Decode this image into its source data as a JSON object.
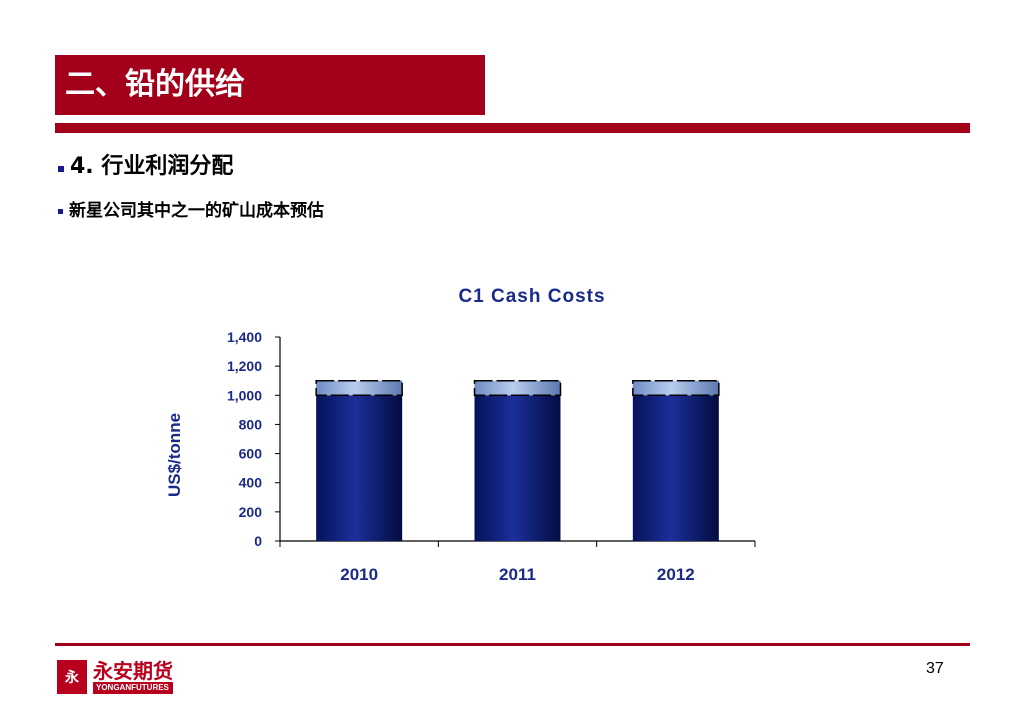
{
  "slide": {
    "title": "二、铅的供给",
    "heading": "4. 行业利润分配",
    "subheading": "新星公司其中之一的矿山成本预估",
    "page_number": "37"
  },
  "footer": {
    "logo_cn": "永安期货",
    "logo_en": "YONGANFUTURES",
    "logo_mark": "永"
  },
  "colors": {
    "brand_red": "#a3001c",
    "bar_fill": "#0c1f7a",
    "bar_cap": "#9fb8e0",
    "axis_text": "#1a2a8a"
  },
  "chart_data": {
    "type": "bar",
    "title": "C1 Cash Costs",
    "ylabel": "US$/tonne",
    "xlabel": "",
    "categories": [
      "2010",
      "2011",
      "2012"
    ],
    "series": [
      {
        "values": [
          1000,
          1000,
          1000
        ]
      },
      {
        "values": [
          100,
          100,
          100
        ]
      }
    ],
    "stacked": true,
    "ylim": [
      0,
      1400
    ],
    "yticks": [
      0,
      200,
      400,
      600,
      800,
      1000,
      1200,
      1400
    ],
    "ytick_labels": [
      "0",
      "200",
      "400",
      "600",
      "800",
      "1,000",
      "1,200",
      "1,400"
    ],
    "grid": false,
    "legend": "none"
  }
}
